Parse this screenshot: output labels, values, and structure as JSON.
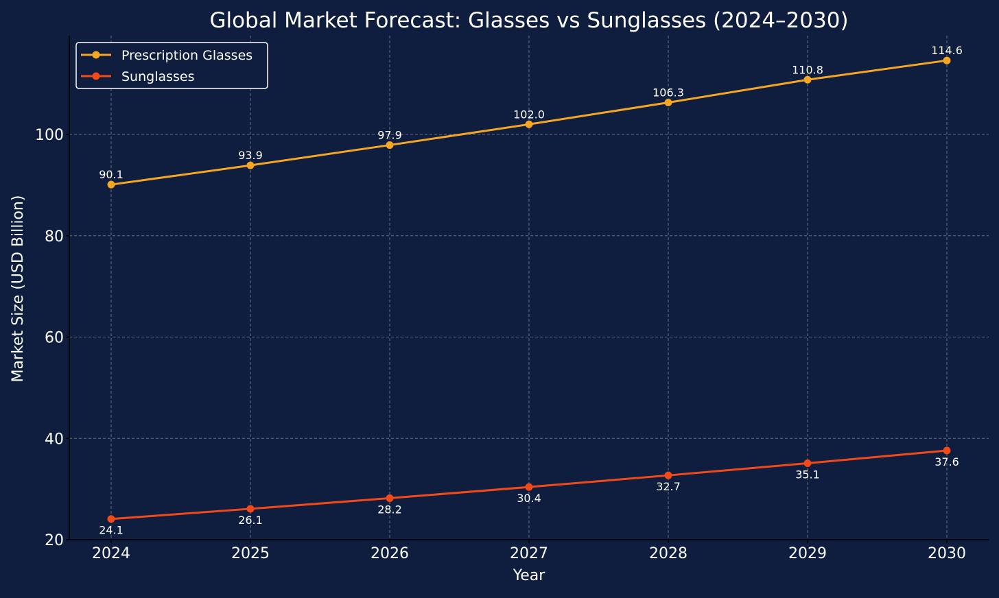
{
  "colors": {
    "background": "#0f1d3e",
    "text": "#ffffff",
    "grid": "#7a7f8c",
    "axis": "#000000",
    "prescription": "#f5a623",
    "sunglasses": "#f04a1a"
  },
  "chart_data": {
    "type": "line",
    "title": "Global Market Forecast: Glasses vs Sunglasses (2024–2030)",
    "xlabel": "Year",
    "ylabel": "Market Size (USD Billion)",
    "x": [
      "2024",
      "2025",
      "2026",
      "2027",
      "2028",
      "2029",
      "2030"
    ],
    "x_tick_labels": [
      "2024",
      "2025",
      "2026",
      "2027",
      "2028",
      "2029",
      "2030"
    ],
    "y_tick_labels": [
      "20",
      "40",
      "60",
      "80",
      "100"
    ],
    "yticks": [
      20,
      40,
      60,
      80,
      100
    ],
    "ylim": [
      20,
      119.5
    ],
    "grid": true,
    "legend_position": "top-left",
    "series": [
      {
        "name": "Prescription Glasses",
        "values": [
          90.1,
          93.9,
          97.9,
          102.0,
          106.3,
          110.8,
          114.6
        ],
        "labels": [
          "90.1",
          "93.9",
          "97.9",
          "102.0",
          "106.3",
          "110.8",
          "114.6"
        ],
        "color": "#f5a623",
        "label_position": "above"
      },
      {
        "name": "Sunglasses",
        "values": [
          24.1,
          26.1,
          28.2,
          30.4,
          32.7,
          35.1,
          37.6
        ],
        "labels": [
          "24.1",
          "26.1",
          "28.2",
          "30.4",
          "32.7",
          "35.1",
          "37.6"
        ],
        "color": "#f04a1a",
        "label_position": "below"
      }
    ]
  }
}
